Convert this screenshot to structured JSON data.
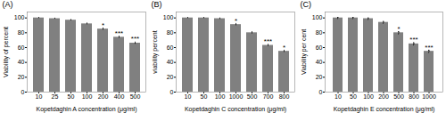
{
  "chart_data": [
    {
      "type": "bar",
      "title": "(A)",
      "xlabel": "Kopetdaghin A concentration (μg/ml)",
      "ylabel": "Viability of percent",
      "categories": [
        "10",
        "25",
        "50",
        "100",
        "200",
        "400",
        "500"
      ],
      "values": [
        100,
        99,
        97,
        92,
        85,
        74,
        66
      ],
      "errors": [
        0.8,
        0.8,
        1.0,
        1.2,
        1.5,
        1.5,
        1.5
      ],
      "annotations": [
        {
          "category": "200",
          "text": "*"
        },
        {
          "category": "400",
          "text": "***"
        },
        {
          "category": "500",
          "text": "***"
        }
      ],
      "color": "#808080",
      "ylim": [
        0,
        108
      ],
      "yticks": [
        0,
        20,
        40,
        60,
        80,
        100
      ]
    },
    {
      "type": "bar",
      "title": "(B)",
      "xlabel": "Kopetdaghin C concentration (μg/ml)",
      "ylabel": "viability percent",
      "categories": [
        "10",
        "50",
        "100",
        "1000",
        "500",
        "700",
        "800"
      ],
      "values": [
        100,
        100,
        99,
        91,
        80,
        63,
        55
      ],
      "errors": [
        0.8,
        0.8,
        1.0,
        1.5,
        1.5,
        1.5,
        1.5
      ],
      "annotations": [
        {
          "category": "1000",
          "text": "*"
        },
        {
          "category": "700",
          "text": "***"
        },
        {
          "category": "800",
          "text": "*"
        }
      ],
      "color": "#808080",
      "ylim": [
        0,
        108
      ],
      "yticks": [
        0,
        20,
        40,
        60,
        80,
        100
      ]
    },
    {
      "type": "bar",
      "title": "(C)",
      "xlabel": "Kopetdaghin E concentration (μg/ml)",
      "ylabel": "Viability per cent",
      "categories": [
        "10",
        "50",
        "100",
        "200",
        "500",
        "800",
        "1000"
      ],
      "values": [
        100,
        100,
        99,
        94,
        80,
        65,
        55
      ],
      "errors": [
        0.8,
        0.8,
        1.0,
        1.2,
        1.5,
        1.5,
        1.5
      ],
      "annotations": [
        {
          "category": "500",
          "text": "*"
        },
        {
          "category": "800",
          "text": "***"
        },
        {
          "category": "1000",
          "text": "***"
        }
      ],
      "color": "#808080",
      "ylim": [
        0,
        108
      ],
      "yticks": [
        0,
        20,
        40,
        60,
        80,
        100
      ]
    }
  ]
}
